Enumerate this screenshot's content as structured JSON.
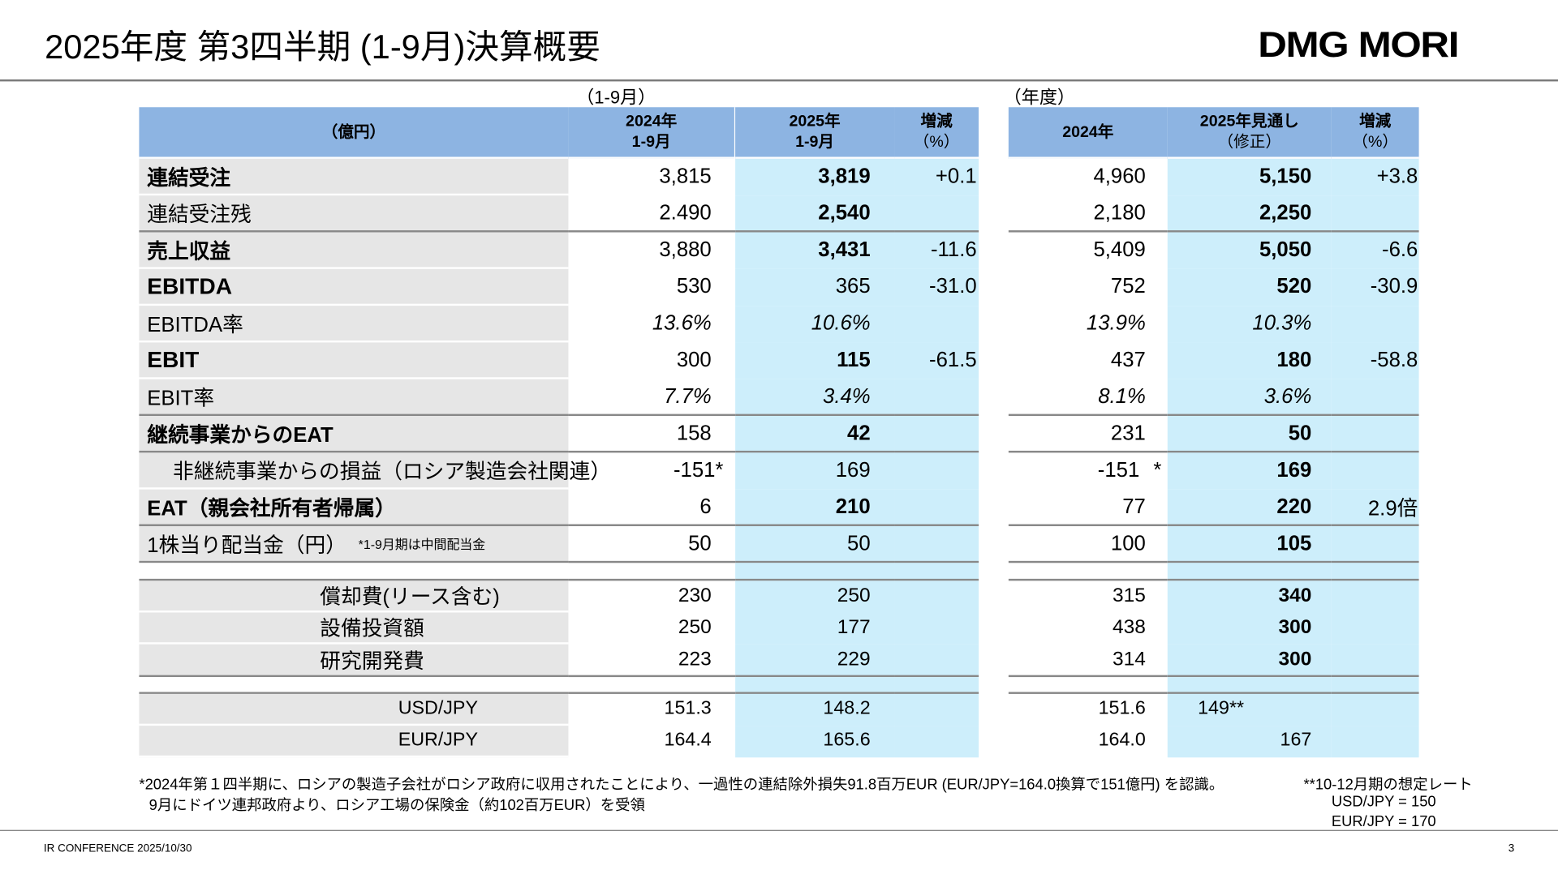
{
  "title": "2025年度 第3四半期 (1-9月)決算概要",
  "logo": "DMG MORI",
  "group_left": "（1-9月）",
  "group_right": "（年度）",
  "header": {
    "unit": "（億円）",
    "l24": [
      "2024年",
      "1-9月"
    ],
    "l25": [
      "2025年",
      "1-9月"
    ],
    "lpct": [
      "増減",
      "（%）"
    ],
    "r24": "2024年",
    "r25": [
      "2025年見通し",
      "（修正）"
    ],
    "rpct": [
      "増減",
      "（%）"
    ]
  },
  "rows": [
    {
      "label": "連結受注",
      "l24": "3,815",
      "l25": "3,819",
      "lpct": "+0.1",
      "r24": "4,960",
      "r25": "5,150",
      "rpct": "+3.8"
    },
    {
      "label": "連結受注残",
      "l24": "2.490",
      "l25": "2,540",
      "lpct": "",
      "r24": "2,180",
      "r25": "2,250",
      "rpct": ""
    },
    {
      "label": "売上収益",
      "l24": "3,880",
      "l25": "3,431",
      "lpct": "-11.6",
      "r24": "5,409",
      "r25": "5,050",
      "rpct": "-6.6"
    },
    {
      "label": "EBITDA",
      "l24": "530",
      "l25": "365",
      "lpct": "-31.0",
      "r24": "752",
      "r25": "520",
      "rpct": "-30.9"
    },
    {
      "label": "EBITDA率",
      "l24": "13.6%",
      "l25": "10.6%",
      "lpct": "",
      "r24": "13.9%",
      "r25": "10.3%",
      "rpct": ""
    },
    {
      "label": "EBIT",
      "l24": "300",
      "l25": "115",
      "lpct": "-61.5",
      "r24": "437",
      "r25": "180",
      "rpct": "-58.8"
    },
    {
      "label": "EBIT率",
      "l24": "7.7%",
      "l25": "3.4%",
      "lpct": "",
      "r24": "8.1%",
      "r25": "3.6%",
      "rpct": ""
    },
    {
      "label": "継続事業からのEAT",
      "l24": "158",
      "l25": "42",
      "lpct": "",
      "r24": "231",
      "r25": "50",
      "rpct": ""
    },
    {
      "label": "非継続事業からの損益（ロシア製造会社関連）",
      "l24": "-151*",
      "l25": "169",
      "lpct": "",
      "r24": "-151",
      "r24_mark": "*",
      "r25": "169",
      "rpct": ""
    },
    {
      "label": "EAT（親会社所有者帰属）",
      "l24": "6",
      "l25": "210",
      "lpct": "",
      "r24": "77",
      "r25": "220",
      "rpct": "2.9倍"
    },
    {
      "label": "1株当り配当金（円）",
      "note": "*1-9月期は中間配当金",
      "l24": "50",
      "l25": "50",
      "lpct": "",
      "r24": "100",
      "r25": "105",
      "rpct": ""
    },
    {
      "label": "",
      "l24": "",
      "l25": "",
      "lpct": "",
      "r24": "",
      "r25": "",
      "rpct": ""
    },
    {
      "label": "償却費(リース含む)",
      "l24": "230",
      "l25": "250",
      "lpct": "",
      "r24": "315",
      "r25": "340",
      "rpct": ""
    },
    {
      "label": "設備投資額",
      "l24": "250",
      "l25": "177",
      "lpct": "",
      "r24": "438",
      "r25": "300",
      "rpct": ""
    },
    {
      "label": "研究開発費",
      "l24": "223",
      "l25": "229",
      "lpct": "",
      "r24": "314",
      "r25": "300",
      "rpct": ""
    },
    {
      "label": "",
      "l24": "",
      "l25": "",
      "lpct": "",
      "r24": "",
      "r25": "",
      "rpct": ""
    },
    {
      "label": "USD/JPY",
      "l24": "151.3",
      "l25": "148.2",
      "lpct": "",
      "r24": "151.6",
      "r25": "149**",
      "rpct": ""
    },
    {
      "label": "EUR/JPY",
      "l24": "164.4",
      "l25": "165.6",
      "lpct": "",
      "r24": "164.0",
      "r25": "167",
      "rpct": ""
    }
  ],
  "footnotes": [
    "*2024年第１四半期に、ロシアの製造子会社がロシア政府に収用されたことにより、一過性の連結除外損失91.8百万EUR (EUR/JPY=164.0換算で151億円) を認識。",
    "9月にドイツ連邦政府より、ロシア工場の保険金（約102百万EUR）を受領"
  ],
  "rate_note": [
    "**10-12月期の想定レート",
    "USD/JPY = 150",
    "EUR/JPY = 170"
  ],
  "footer": {
    "left": "IR CONFERENCE 2025/10/30",
    "page": "3"
  },
  "colors": {
    "header": "#8db4e2",
    "highlight": "#cdeefb",
    "label_bg": "#e6e6e6"
  }
}
